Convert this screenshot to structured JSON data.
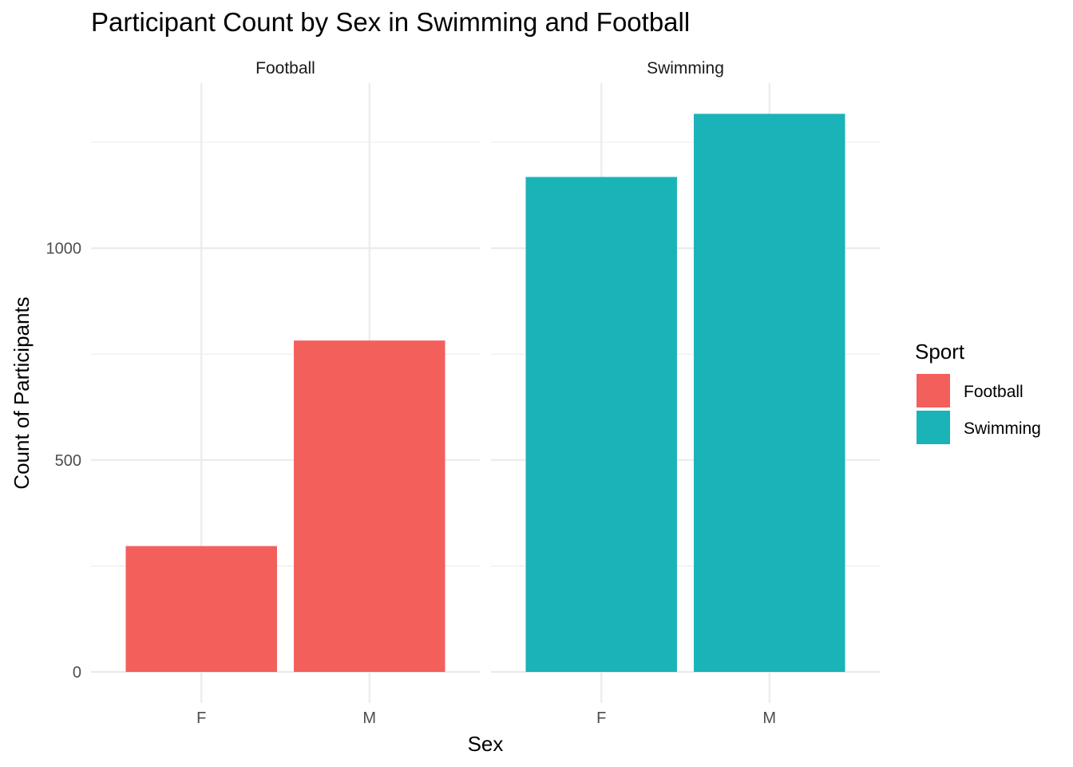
{
  "chart_data": {
    "type": "bar",
    "title": "Participant Count by Sex in Swimming and Football",
    "xlabel": "Sex",
    "ylabel": "Count of Participants",
    "categories": [
      "F",
      "M"
    ],
    "ylim": [
      0,
      1320
    ],
    "y_ticks": [
      0,
      500,
      1000
    ],
    "y_tick_labels": [
      "0",
      "500",
      "1000"
    ],
    "y_minor_ticks": [
      250,
      750,
      1250
    ],
    "grid": true,
    "facets": [
      {
        "label": "Football",
        "fill": "Football",
        "values": [
          297,
          782
        ]
      },
      {
        "label": "Swimming",
        "fill": "Swimming",
        "values": [
          1168,
          1317
        ]
      }
    ],
    "legend": {
      "title": "Sport",
      "position": "right",
      "entries": [
        {
          "name": "Football",
          "color": "#f35f5b"
        },
        {
          "name": "Swimming",
          "color": "#1ab3b8"
        }
      ]
    }
  }
}
